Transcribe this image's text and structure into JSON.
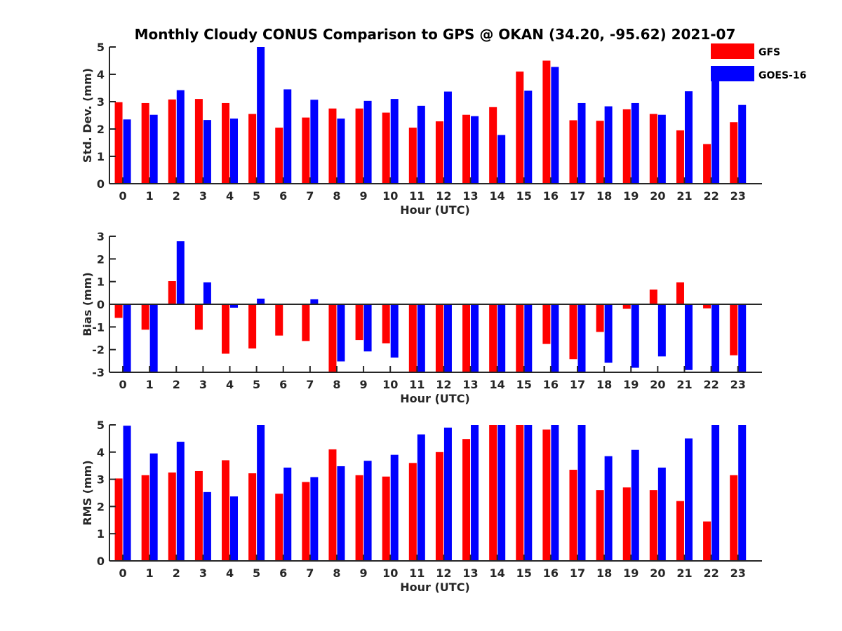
{
  "title": "Monthly Cloudy CONUS Comparison to GPS @ OKAN (34.20, -95.62) 2021-07",
  "colors": {
    "GFS": "#ff0000",
    "GOES-16": "#0000ff"
  },
  "legend": [
    {
      "name": "GFS",
      "color": "#ff0000"
    },
    {
      "name": "GOES-16",
      "color": "#0000ff"
    }
  ],
  "chart_data": [
    {
      "type": "bar",
      "title": "Monthly Cloudy CONUS Comparison to GPS @ OKAN (34.20, -95.62) 2021-07",
      "xlabel": "Hour (UTC)",
      "ylabel": "Std. Dev. (mm)",
      "ylim": [
        0,
        5
      ],
      "yticks": [
        0,
        1,
        2,
        3,
        4,
        5
      ],
      "categories": [
        "0",
        "1",
        "2",
        "3",
        "4",
        "5",
        "6",
        "7",
        "8",
        "9",
        "10",
        "11",
        "12",
        "13",
        "14",
        "15",
        "16",
        "17",
        "18",
        "19",
        "20",
        "21",
        "22",
        "23"
      ],
      "legend": "top-right",
      "series": [
        {
          "name": "GFS",
          "values": [
            2.98,
            2.95,
            3.08,
            3.1,
            2.95,
            2.55,
            2.05,
            2.42,
            2.75,
            2.75,
            2.6,
            2.05,
            2.28,
            2.52,
            2.8,
            4.1,
            4.5,
            2.32,
            2.3,
            2.72,
            2.55,
            1.95,
            1.45,
            2.25
          ]
        },
        {
          "name": "GOES-16",
          "values": [
            2.35,
            2.52,
            3.42,
            2.33,
            2.38,
            5.0,
            3.45,
            3.07,
            2.38,
            3.03,
            3.1,
            2.85,
            3.37,
            2.47,
            1.78,
            3.4,
            4.27,
            2.95,
            2.83,
            2.95,
            2.52,
            3.38,
            3.98,
            2.88
          ]
        }
      ]
    },
    {
      "type": "bar",
      "xlabel": "Hour (UTC)",
      "ylabel": "Bias (mm)",
      "ylim": [
        -3,
        3
      ],
      "yticks": [
        -3,
        -2,
        -1,
        0,
        1,
        2,
        3
      ],
      "categories": [
        "0",
        "1",
        "2",
        "3",
        "4",
        "5",
        "6",
        "7",
        "8",
        "9",
        "10",
        "11",
        "12",
        "13",
        "14",
        "15",
        "16",
        "17",
        "18",
        "19",
        "20",
        "21",
        "22",
        "23"
      ],
      "series": [
        {
          "name": "GFS",
          "values": [
            -0.6,
            -1.12,
            1.02,
            -1.12,
            -2.18,
            -1.95,
            -1.38,
            -1.62,
            -3.0,
            -1.58,
            -1.72,
            -3.0,
            -3.0,
            -3.0,
            -3.0,
            -3.0,
            -1.75,
            -2.42,
            -1.22,
            -0.2,
            0.65,
            0.97,
            -0.18,
            -2.25
          ]
        },
        {
          "name": "GOES-16",
          "values": [
            -3.0,
            -3.0,
            2.78,
            0.97,
            -0.15,
            0.25,
            0.0,
            0.22,
            -2.52,
            -2.08,
            -2.35,
            -3.0,
            -3.0,
            -3.0,
            -3.0,
            -3.0,
            -3.0,
            -3.0,
            -2.58,
            -2.8,
            -2.3,
            -2.9,
            -3.0,
            -3.0
          ]
        }
      ]
    },
    {
      "type": "bar",
      "xlabel": "Hour (UTC)",
      "ylabel": "RMS (mm)",
      "ylim": [
        0,
        5
      ],
      "yticks": [
        0,
        1,
        2,
        3,
        4,
        5
      ],
      "categories": [
        "0",
        "1",
        "2",
        "3",
        "4",
        "5",
        "6",
        "7",
        "8",
        "9",
        "10",
        "11",
        "12",
        "13",
        "14",
        "15",
        "16",
        "17",
        "18",
        "19",
        "20",
        "21",
        "22",
        "23"
      ],
      "series": [
        {
          "name": "GFS",
          "values": [
            3.03,
            3.15,
            3.25,
            3.3,
            3.7,
            3.22,
            2.47,
            2.9,
            4.1,
            3.15,
            3.1,
            3.6,
            4.0,
            4.48,
            5.0,
            5.0,
            4.83,
            3.35,
            2.6,
            2.7,
            2.6,
            2.2,
            1.45,
            3.15
          ]
        },
        {
          "name": "GOES-16",
          "values": [
            4.97,
            3.95,
            4.38,
            2.53,
            2.37,
            5.0,
            3.43,
            3.08,
            3.48,
            3.68,
            3.9,
            4.65,
            4.9,
            5.0,
            5.0,
            5.0,
            5.0,
            5.0,
            3.85,
            4.08,
            3.43,
            4.5,
            5.0,
            5.0
          ]
        }
      ]
    }
  ]
}
